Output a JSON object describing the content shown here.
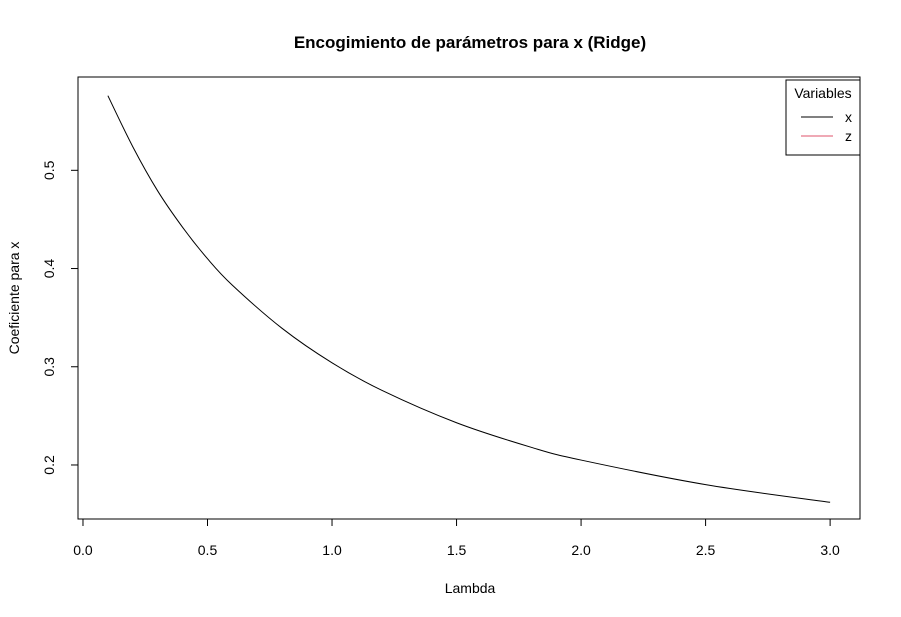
{
  "chart_data": {
    "type": "line",
    "title": "Encogimiento de parámetros para x (Ridge)",
    "xlabel": "Lambda",
    "ylabel": "Coeficiente para x",
    "xlim": [
      -0.02,
      3.12
    ],
    "ylim": [
      0.145,
      0.595
    ],
    "x_ticks": [
      0.0,
      0.5,
      1.0,
      1.5,
      2.0,
      2.5,
      3.0
    ],
    "x_tick_labels": [
      "0.0",
      "0.5",
      "1.0",
      "1.5",
      "2.0",
      "2.5",
      "3.0"
    ],
    "y_ticks": [
      0.2,
      0.3,
      0.4,
      0.5
    ],
    "y_tick_labels": [
      "0.2",
      "0.3",
      "0.4",
      "0.5"
    ],
    "grid": false,
    "legend": {
      "title": "Variables",
      "position": "top-right",
      "entries": [
        {
          "label": "x",
          "color": "#000000"
        },
        {
          "label": "z",
          "color": "#df536b"
        }
      ]
    },
    "series": [
      {
        "name": "x",
        "color": "#000000",
        "x": [
          0.1,
          0.2,
          0.3,
          0.4,
          0.5,
          0.6,
          0.8,
          1.0,
          1.2,
          1.5,
          1.8,
          2.0,
          2.5,
          3.0
        ],
        "y": [
          0.576,
          0.524,
          0.479,
          0.442,
          0.41,
          0.383,
          0.339,
          0.304,
          0.276,
          0.243,
          0.218,
          0.205,
          0.18,
          0.162
        ]
      }
    ]
  }
}
